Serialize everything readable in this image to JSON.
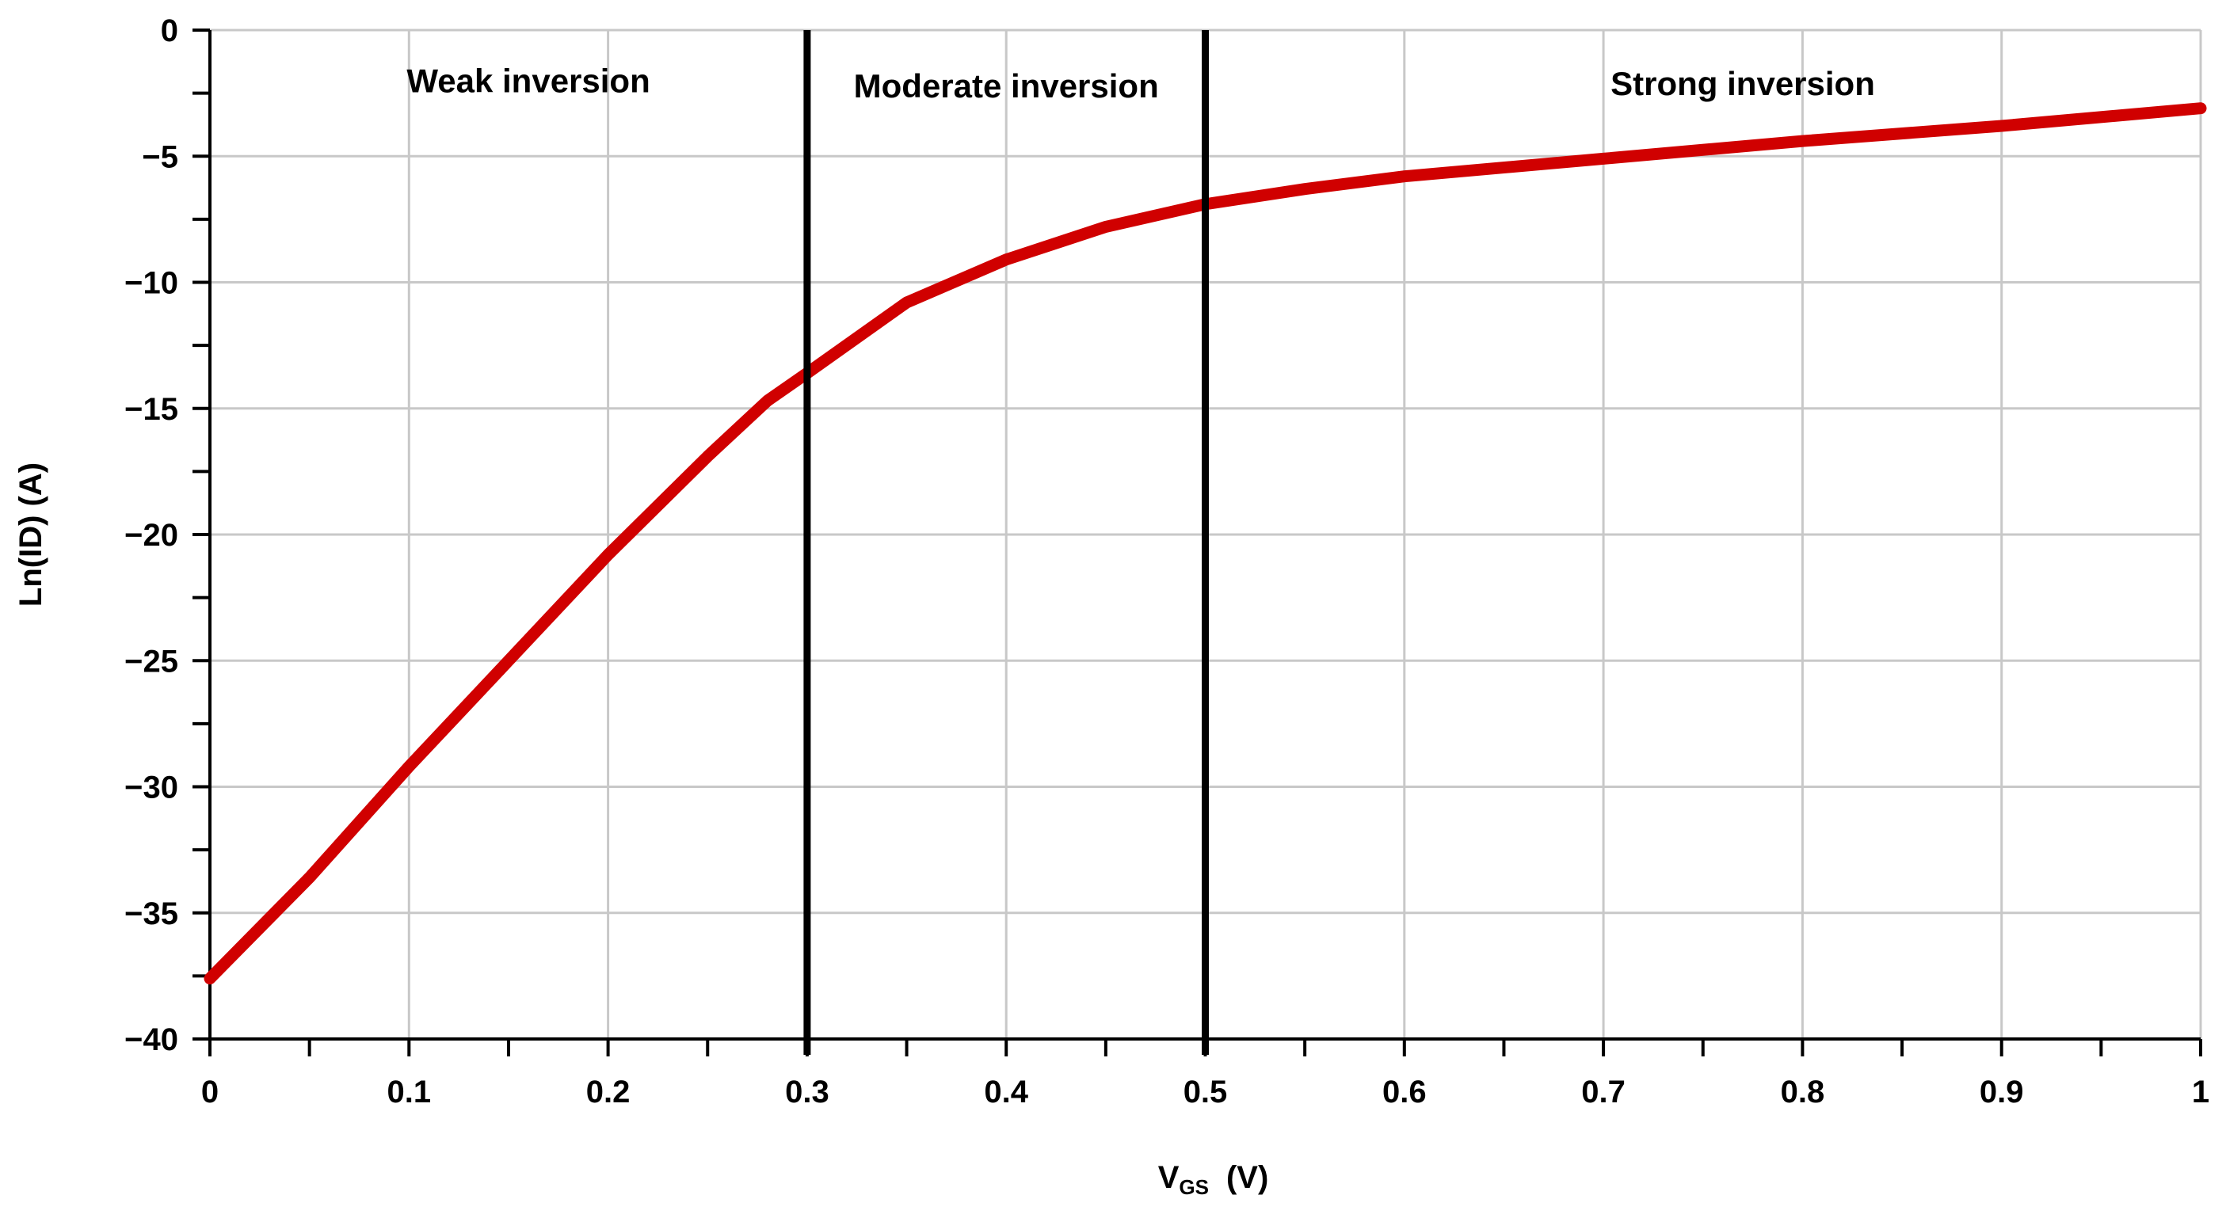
{
  "chart_data": {
    "type": "line",
    "title": "",
    "xlabel": {
      "main": "V",
      "subscript": "GS",
      "unit": "(V)"
    },
    "ylabel": "Ln(ID) (A)",
    "xlim": [
      0,
      1
    ],
    "ylim": [
      -40,
      0
    ],
    "grid": true,
    "x_ticks": [
      0,
      0.1,
      0.2,
      0.3,
      0.4,
      0.5,
      0.6,
      0.7,
      0.8,
      0.9,
      1
    ],
    "x_tick_labels": [
      "0",
      "0.1",
      "0.2",
      "0.3",
      "0.4",
      "0.5",
      "0.6",
      "0.7",
      "0.8",
      "0.9",
      "1"
    ],
    "y_ticks": [
      0,
      -5,
      -10,
      -15,
      -20,
      -25,
      -30,
      -35,
      -40
    ],
    "y_tick_labels": [
      "0",
      "−5",
      "−10",
      "−15",
      "−20",
      "−25",
      "−30",
      "−35",
      "−40"
    ],
    "series": [
      {
        "name": "Ln(ID)",
        "color": "#d00000",
        "x": [
          0,
          0.05,
          0.1,
          0.15,
          0.2,
          0.25,
          0.28,
          0.3,
          0.35,
          0.4,
          0.45,
          0.5,
          0.55,
          0.6,
          0.7,
          0.8,
          0.9,
          1.0
        ],
        "y": [
          -37.6,
          -33.6,
          -29.2,
          -25.0,
          -20.8,
          -16.9,
          -14.7,
          -13.6,
          -10.8,
          -9.1,
          -7.8,
          -6.9,
          -6.3,
          -5.8,
          -5.1,
          -4.4,
          -3.8,
          -3.1
        ]
      }
    ],
    "boundaries": [
      {
        "x": 0.3,
        "color": "#000000"
      },
      {
        "x": 0.5,
        "color": "#000000"
      }
    ],
    "regions": [
      {
        "label": "Weak inversion",
        "x": 0.16,
        "y": -2
      },
      {
        "label": "Moderate inversion",
        "x": 0.4,
        "y": -2.2
      },
      {
        "label": "Strong inversion",
        "x": 0.77,
        "y": -2.1
      }
    ]
  }
}
